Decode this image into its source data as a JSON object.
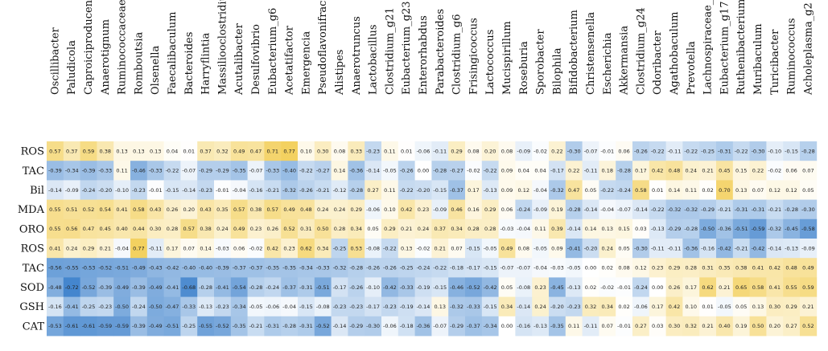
{
  "chart_data": {
    "type": "heatmap",
    "title": "",
    "columns": [
      "Oscillibacter",
      "Paludicola",
      "Caproiciproducens",
      "Anaerotignum",
      "Ruminococcaceae_uc",
      "Romboutsia",
      "Olsenella",
      "Faecalibaculum",
      "Bacteroides",
      "Harryflintia",
      "Massiliooclostridium",
      "Acutalibacter",
      "Desulfovibrio",
      "Eubacterium_g6",
      "Acetatifactor",
      "Emergencia",
      "Pseudoflavonifractor",
      "Alistipes",
      "Anaerotruncus",
      "Lactobacillus",
      "Clostridium_g21",
      "Eubacterium_g23",
      "Enterorhabdus",
      "Parabacteroides",
      "Clostridium_g6",
      "Frisingicoccus",
      "Lactococcus",
      "Mucispirillum",
      "Roseburia",
      "Sporobacter",
      "Bilophila",
      "Bifidobacterium",
      "Christensenella",
      "Escherichia",
      "Akkermansia",
      "Clostridium_g24",
      "Odoribacter",
      "Agathobaculum",
      "Prevotella",
      "Lachnospiraceae_uc",
      "Eubacterium_g17",
      "Ruthenibacterium",
      "Muribaculum",
      "Turicibacter",
      "Ruminococcus",
      "Acholeplasma_g2"
    ],
    "rows": [
      "ROS",
      "TAC",
      "Bil",
      "MDA",
      "ORO",
      "ROS",
      "TAC",
      "SOD",
      "GSH",
      "CAT"
    ],
    "values": [
      [
        0.57,
        0.37,
        0.59,
        0.38,
        0.13,
        0.13,
        0.13,
        0.04,
        0.01,
        0.37,
        0.32,
        0.49,
        0.47,
        0.71,
        0.77,
        0.1,
        0.3,
        0.08,
        0.33,
        -0.23,
        0.11,
        0.01,
        -0.06,
        -0.11,
        0.29,
        0.08,
        0.2,
        0.08,
        -0.09,
        -0.02,
        0.22,
        -0.3,
        -0.07,
        -0.01,
        0.06,
        -0.26,
        -0.22,
        -0.11,
        -0.22,
        -0.25,
        -0.31,
        -0.22,
        -0.3,
        -0.1,
        -0.15,
        -0.28
      ],
      [
        -0.39,
        -0.34,
        -0.39,
        -0.33,
        0.11,
        -0.46,
        -0.33,
        -0.22,
        -0.07,
        -0.29,
        -0.29,
        -0.35,
        -0.07,
        -0.33,
        -0.4,
        -0.22,
        -0.27,
        0.14,
        -0.36,
        -0.14,
        -0.05,
        -0.26,
        0.0,
        -0.28,
        -0.27,
        -0.02,
        -0.22,
        0.09,
        0.04,
        0.04,
        -0.17,
        0.22,
        -0.11,
        0.18,
        -0.28,
        0.17,
        0.42,
        0.48,
        0.24,
        0.21,
        0.45,
        0.15,
        0.22,
        -0.02,
        0.06,
        0.07
      ],
      [
        -0.14,
        -0.09,
        -0.24,
        -0.2,
        -0.1,
        -0.23,
        -0.01,
        -0.15,
        -0.14,
        -0.23,
        -0.01,
        -0.04,
        -0.16,
        -0.21,
        -0.32,
        -0.26,
        -0.21,
        -0.12,
        -0.28,
        0.27,
        0.11,
        -0.22,
        -0.2,
        -0.15,
        -0.37,
        0.17,
        -0.13,
        0.09,
        0.12,
        -0.04,
        -0.32,
        0.47,
        0.05,
        -0.22,
        -0.24,
        0.58,
        0.01,
        0.14,
        0.11,
        0.02,
        0.7,
        0.13,
        0.07,
        0.12,
        0.12,
        0.05
      ],
      [
        0.55,
        0.51,
        0.52,
        0.54,
        0.41,
        0.58,
        0.43,
        0.26,
        0.2,
        0.43,
        0.35,
        0.57,
        0.38,
        0.57,
        0.49,
        0.48,
        0.24,
        0.24,
        0.29,
        -0.06,
        0.1,
        0.42,
        0.23,
        -0.09,
        0.46,
        0.16,
        0.29,
        0.06,
        -0.24,
        -0.09,
        0.19,
        -0.28,
        -0.14,
        -0.04,
        -0.07,
        -0.14,
        -0.22,
        -0.32,
        -0.32,
        -0.29,
        -0.21,
        -0.31,
        -0.31,
        -0.21,
        -0.28,
        -0.3
      ],
      [
        0.55,
        0.56,
        0.47,
        0.45,
        0.4,
        0.44,
        0.3,
        0.28,
        0.57,
        0.38,
        0.24,
        0.49,
        0.23,
        0.26,
        0.52,
        0.31,
        0.5,
        0.28,
        0.34,
        0.05,
        0.29,
        0.21,
        0.24,
        0.37,
        0.34,
        0.28,
        0.28,
        -0.03,
        -0.04,
        0.11,
        0.39,
        -0.14,
        0.14,
        0.13,
        0.15,
        0.03,
        -0.13,
        -0.29,
        -0.28,
        -0.5,
        -0.36,
        -0.51,
        -0.59,
        -0.32,
        -0.45,
        -0.58
      ],
      [
        0.41,
        0.24,
        0.29,
        0.21,
        -0.04,
        0.77,
        -0.11,
        0.17,
        0.07,
        0.14,
        -0.03,
        0.06,
        -0.02,
        0.42,
        0.23,
        0.62,
        0.34,
        -0.25,
        0.53,
        -0.08,
        -0.22,
        0.13,
        -0.02,
        0.21,
        0.07,
        -0.15,
        -0.05,
        0.49,
        0.08,
        -0.05,
        0.09,
        -0.41,
        -0.2,
        0.24,
        0.05,
        -0.3,
        -0.11,
        -0.11,
        -0.36,
        -0.16,
        -0.42,
        -0.21,
        -0.42,
        -0.14,
        -0.13,
        -0.09
      ],
      [
        -0.56,
        -0.55,
        -0.53,
        -0.52,
        -0.51,
        -0.49,
        -0.43,
        -0.42,
        -0.4,
        -0.4,
        -0.39,
        -0.37,
        -0.37,
        -0.35,
        -0.35,
        -0.34,
        -0.33,
        -0.32,
        -0.28,
        -0.26,
        -0.26,
        -0.25,
        -0.24,
        -0.22,
        -0.18,
        -0.17,
        -0.15,
        -0.07,
        -0.07,
        -0.04,
        -0.03,
        -0.05,
        0.0,
        0.02,
        0.08,
        0.12,
        0.23,
        0.29,
        0.28,
        0.31,
        0.35,
        0.38,
        0.41,
        0.42,
        0.48,
        0.49
      ],
      [
        -0.48,
        -0.72,
        -0.52,
        -0.39,
        -0.49,
        -0.39,
        -0.49,
        -0.41,
        -0.68,
        -0.28,
        -0.41,
        -0.54,
        -0.28,
        -0.24,
        -0.37,
        -0.31,
        -0.51,
        -0.17,
        -0.26,
        -0.1,
        -0.42,
        -0.33,
        -0.19,
        -0.15,
        -0.46,
        -0.52,
        -0.42,
        0.05,
        -0.08,
        0.23,
        -0.45,
        -0.13,
        0.02,
        -0.02,
        -0.01,
        -0.24,
        0.0,
        0.26,
        0.17,
        0.62,
        0.21,
        0.65,
        0.58,
        0.41,
        0.55,
        0.59
      ],
      [
        -0.16,
        -0.41,
        -0.25,
        -0.23,
        -0.5,
        -0.24,
        -0.5,
        -0.47,
        -0.33,
        -0.13,
        -0.23,
        -0.34,
        -0.05,
        -0.06,
        -0.04,
        -0.15,
        -0.08,
        -0.23,
        -0.23,
        -0.17,
        -0.23,
        -0.19,
        -0.14,
        0.13,
        -0.32,
        -0.33,
        -0.15,
        0.34,
        -0.14,
        0.24,
        -0.2,
        -0.23,
        0.32,
        0.34,
        0.02,
        -0.06,
        0.17,
        0.42,
        0.1,
        0.01,
        -0.05,
        0.05,
        0.13,
        0.3,
        0.29,
        0.21
      ],
      [
        -0.53,
        -0.61,
        -0.61,
        -0.59,
        -0.59,
        -0.39,
        -0.49,
        -0.51,
        -0.25,
        -0.55,
        -0.52,
        -0.35,
        -0.21,
        -0.31,
        -0.28,
        -0.31,
        -0.52,
        -0.14,
        -0.29,
        -0.3,
        -0.06,
        -0.18,
        -0.36,
        -0.07,
        -0.29,
        -0.37,
        -0.34,
        0.0,
        -0.16,
        -0.13,
        -0.35,
        0.11,
        -0.11,
        0.07,
        -0.01,
        0.27,
        0.03,
        0.3,
        0.32,
        0.21,
        0.4,
        0.19,
        0.5,
        0.2,
        0.27,
        0.52
      ]
    ],
    "color_scale": {
      "negative": "#2f78c8",
      "zero": "#ffffff",
      "positive": "#f3cf5a"
    }
  }
}
